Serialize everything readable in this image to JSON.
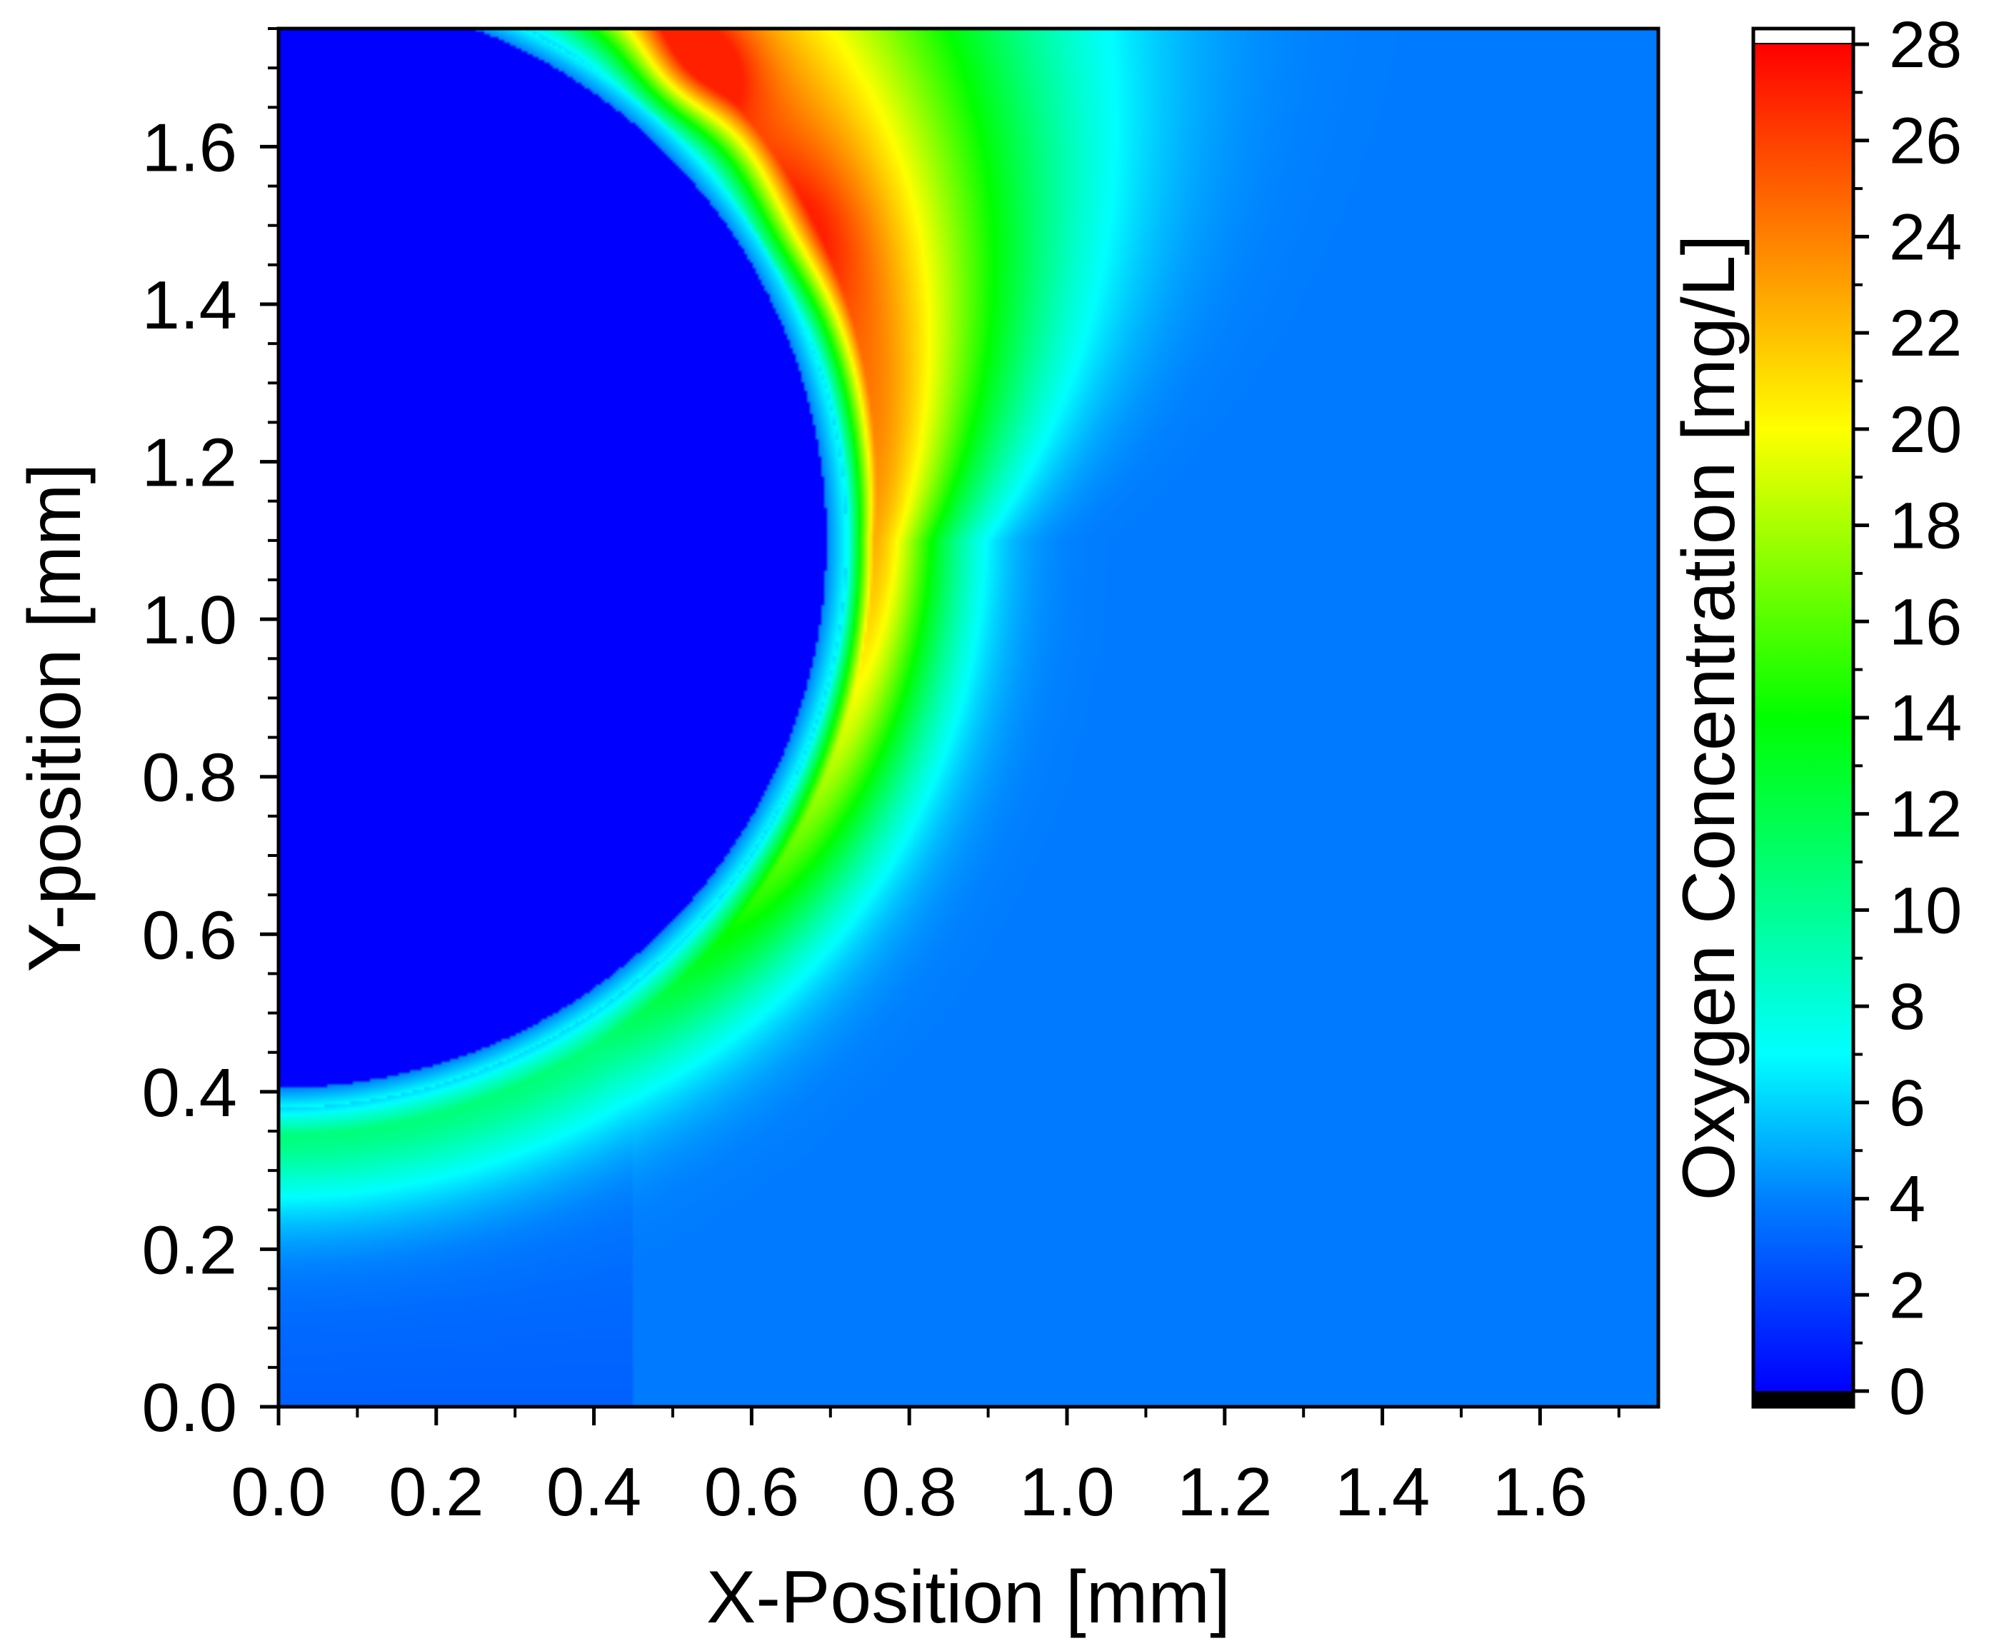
{
  "chart_data": {
    "type": "heatmap",
    "title": "",
    "xlabel": "X-Position [mm]",
    "ylabel": "Y-position [mm]",
    "colorbar_label": "Oxygen Concentration [mg/L]",
    "xlim": [
      0.0,
      1.75
    ],
    "ylim": [
      0.0,
      1.75
    ],
    "x_ticks": [
      0.0,
      0.2,
      0.4,
      0.6,
      0.8,
      1.0,
      1.2,
      1.4,
      1.6
    ],
    "x_tick_labels": [
      "0.0",
      "0.2",
      "0.4",
      "0.6",
      "0.8",
      "1.0",
      "1.2",
      "1.4",
      "1.6"
    ],
    "y_ticks": [
      0.0,
      0.2,
      0.4,
      0.6,
      0.8,
      1.0,
      1.2,
      1.4,
      1.6
    ],
    "y_tick_labels": [
      "0.0",
      "0.2",
      "0.4",
      "0.6",
      "0.8",
      "1.0",
      "1.2",
      "1.4",
      "1.6"
    ],
    "colorbar_range": [
      0,
      28
    ],
    "colorbar_ticks": [
      0,
      2,
      4,
      6,
      8,
      10,
      12,
      14,
      16,
      18,
      20,
      22,
      24,
      26,
      28
    ],
    "colorbar_tick_labels": [
      "0",
      "2",
      "4",
      "6",
      "8",
      "10",
      "12",
      "14",
      "16",
      "18",
      "20",
      "22",
      "24",
      "26",
      "28"
    ],
    "colormap": [
      {
        "value": 0,
        "color": "#0000ff"
      },
      {
        "value": 4,
        "color": "#0080ff"
      },
      {
        "value": 7,
        "color": "#00ffff"
      },
      {
        "value": 14,
        "color": "#00ff00"
      },
      {
        "value": 20,
        "color": "#ffff00"
      },
      {
        "value": 24,
        "color": "#ff8000"
      },
      {
        "value": 28,
        "color": "#ff0000"
      }
    ],
    "under_color": "#000000",
    "over_color": "#ffffff",
    "field": {
      "background_value": 3.8,
      "bubble": {
        "center_x": 0.0,
        "center_y": 1.1,
        "radius": 0.72,
        "value": 0.0
      },
      "rim_peak_value": 22,
      "rim_peak_offset": 0.07,
      "max_value": 27
    }
  }
}
